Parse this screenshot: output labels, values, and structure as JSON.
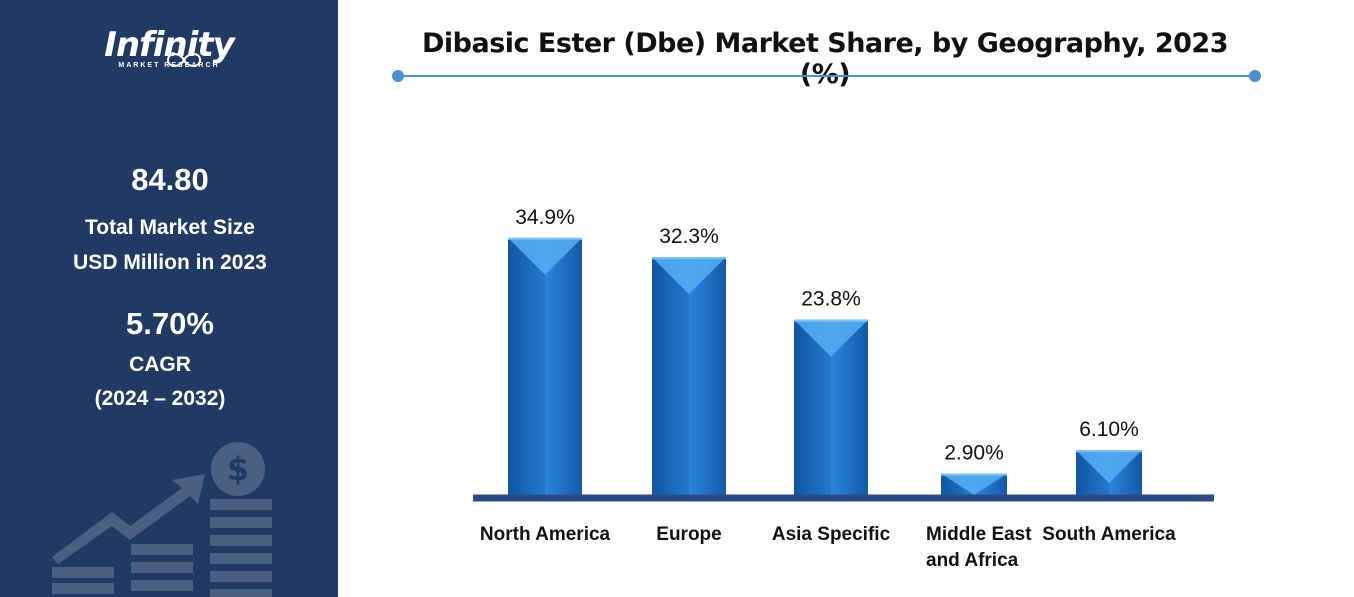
{
  "brand": {
    "name": "Infinity",
    "tagline": "MARKET RESEARCH"
  },
  "sidebar": {
    "market_size_value": "84.80",
    "market_size_label_line1": "Total Market Size",
    "market_size_label_line2": "USD Million in 2023",
    "cagr_value": "5.70%",
    "cagr_label": "CAGR",
    "cagr_period": "(2024 – 2032)",
    "icon": "dollar-growth-icon"
  },
  "colors": {
    "sidebar_bg": "#213a63",
    "bar_main": "#1a6fc4",
    "bar_light": "#4aa3ee",
    "baseline": "#2e4a82",
    "title_rule": "#4a8fd0"
  },
  "chart_data": {
    "type": "bar",
    "title": "Dibasic Ester (Dbe) Market Share, by Geography, 2023 (%)",
    "categories": [
      "North America",
      "Europe",
      "Asia Specific",
      "Middle East and Africa",
      "South America"
    ],
    "category_lines": [
      [
        "North America"
      ],
      [
        "Europe"
      ],
      [
        "Asia Specific"
      ],
      [
        "Middle East",
        "and Africa"
      ],
      [
        "South America"
      ]
    ],
    "values": [
      34.9,
      32.3,
      23.8,
      2.9,
      6.1
    ],
    "data_labels": [
      "34.9%",
      "32.3%",
      "23.8%",
      "2.90%",
      "6.10%"
    ],
    "xlabel": "",
    "ylabel": "",
    "grid": false,
    "legend": "none"
  }
}
